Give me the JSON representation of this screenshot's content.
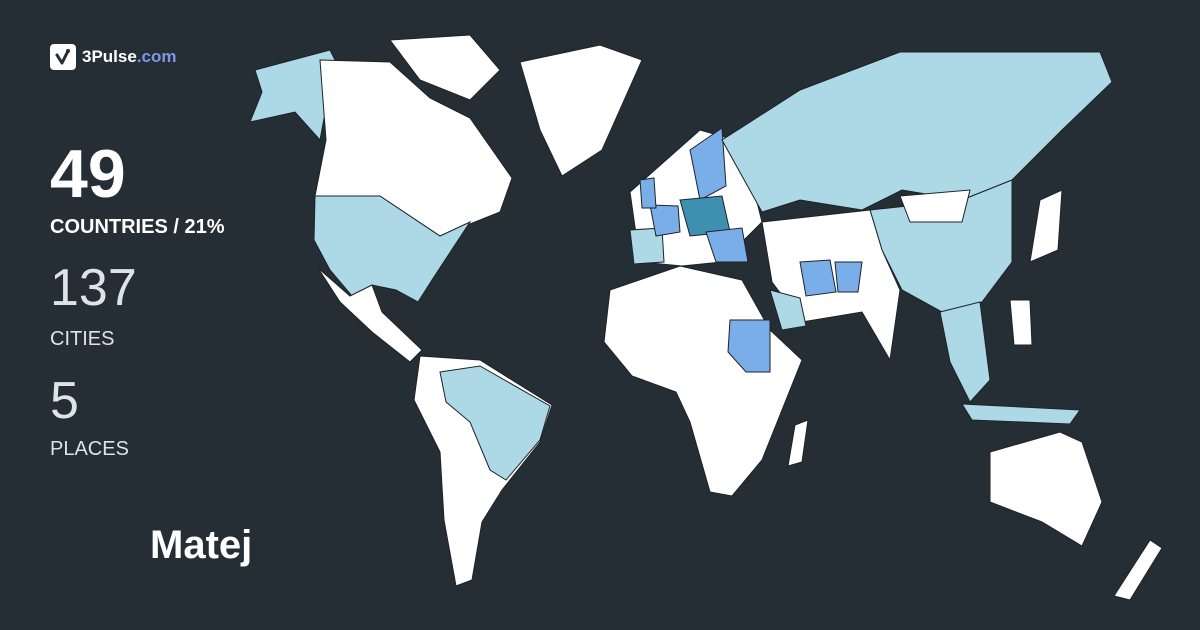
{
  "brand": {
    "name": "3Pulse",
    "domain": ".com",
    "icon": "check-pulse-icon"
  },
  "stats": {
    "countries": {
      "value": "49",
      "label": "COUNTRIES / 21%"
    },
    "cities": {
      "value": "137",
      "label": "CITIES"
    },
    "places": {
      "value": "5",
      "label": "PLACES"
    }
  },
  "user": {
    "name": "Matej"
  },
  "colors": {
    "background": "#252d35",
    "unvisited": "#ffffff",
    "visited": "#add8e6",
    "visited_more": "#7aaee8",
    "visited_most": "#3f8fb0",
    "border": "#1e2328"
  }
}
